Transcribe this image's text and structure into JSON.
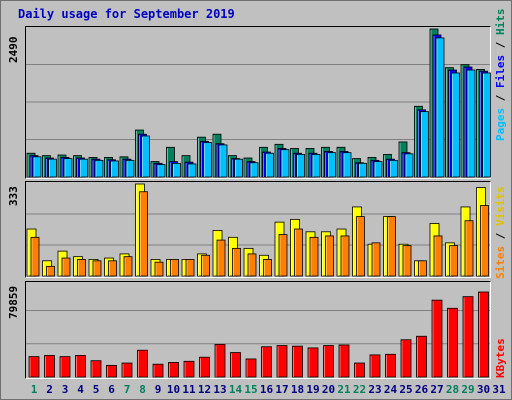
{
  "title": "Daily usage for September 2019",
  "colors": {
    "hits": "#00805c",
    "files": "#0000ff",
    "pages": "#00c0ff",
    "visits": "#ffff00",
    "sites": "#ff8000",
    "kbytes": "#ff0000",
    "weekend_label": "#00805c",
    "weekday_label": "#000080"
  },
  "chart_data": [
    {
      "type": "bar",
      "panel": "top",
      "ymax_label": "2490",
      "ylim": [
        0,
        2490
      ],
      "legend": [
        "Pages",
        "Files",
        "Hits"
      ],
      "categories": [
        "1",
        "2",
        "3",
        "4",
        "5",
        "6",
        "7",
        "8",
        "9",
        "10",
        "11",
        "12",
        "13",
        "14",
        "15",
        "16",
        "17",
        "18",
        "19",
        "20",
        "21",
        "22",
        "23",
        "24",
        "25",
        "26",
        "27",
        "28",
        "29",
        "30",
        "31"
      ],
      "series": [
        {
          "name": "Hits",
          "values": [
            400,
            360,
            370,
            360,
            330,
            330,
            340,
            790,
            260,
            500,
            360,
            670,
            720,
            360,
            320,
            500,
            550,
            480,
            480,
            500,
            500,
            310,
            330,
            380,
            590,
            1190,
            2490,
            1840,
            1890,
            1810,
            0
          ]
        },
        {
          "name": "Files",
          "values": [
            360,
            320,
            330,
            320,
            300,
            290,
            300,
            720,
            230,
            260,
            250,
            600,
            560,
            310,
            260,
            420,
            480,
            400,
            400,
            430,
            430,
            240,
            280,
            300,
            410,
            1130,
            2390,
            1800,
            1850,
            1780,
            0
          ]
        },
        {
          "name": "Pages",
          "values": [
            340,
            300,
            310,
            300,
            280,
            270,
            280,
            690,
            210,
            230,
            220,
            580,
            540,
            300,
            240,
            400,
            460,
            380,
            380,
            410,
            410,
            230,
            260,
            280,
            390,
            1100,
            2340,
            1750,
            1800,
            1750,
            0
          ]
        }
      ]
    },
    {
      "type": "bar",
      "panel": "middle",
      "ymax_label": "333",
      "ylim": [
        0,
        333
      ],
      "legend": [
        "Sites",
        "Visits"
      ],
      "categories": [
        "1",
        "2",
        "3",
        "4",
        "5",
        "6",
        "7",
        "8",
        "9",
        "10",
        "11",
        "12",
        "13",
        "14",
        "15",
        "16",
        "17",
        "18",
        "19",
        "20",
        "21",
        "22",
        "23",
        "24",
        "25",
        "26",
        "27",
        "28",
        "29",
        "30",
        "31"
      ],
      "series": [
        {
          "name": "Visits",
          "values": [
            170,
            55,
            90,
            70,
            60,
            65,
            80,
            333,
            60,
            60,
            60,
            80,
            165,
            140,
            100,
            75,
            195,
            205,
            160,
            160,
            170,
            250,
            115,
            215,
            115,
            55,
            190,
            120,
            250,
            320,
            0
          ]
        },
        {
          "name": "Sites",
          "values": [
            140,
            35,
            65,
            60,
            55,
            55,
            70,
            305,
            50,
            60,
            60,
            75,
            130,
            100,
            80,
            60,
            150,
            170,
            140,
            145,
            145,
            215,
            120,
            215,
            110,
            55,
            145,
            110,
            200,
            255,
            0
          ]
        }
      ]
    },
    {
      "type": "bar",
      "panel": "bottom",
      "ymax_label": "79859",
      "ylim": [
        0,
        79859
      ],
      "legend": [
        "KBytes"
      ],
      "categories": [
        "1",
        "2",
        "3",
        "4",
        "5",
        "6",
        "7",
        "8",
        "9",
        "10",
        "11",
        "12",
        "13",
        "14",
        "15",
        "16",
        "17",
        "18",
        "19",
        "20",
        "21",
        "22",
        "23",
        "24",
        "25",
        "26",
        "27",
        "28",
        "29",
        "30",
        "31"
      ],
      "series": [
        {
          "name": "KBytes",
          "values": [
            17500,
            18500,
            17500,
            18500,
            14000,
            10000,
            12000,
            23000,
            11000,
            12500,
            13500,
            17000,
            28000,
            21000,
            15500,
            26000,
            27000,
            26500,
            25000,
            27000,
            27500,
            12000,
            19000,
            19500,
            32000,
            35000,
            66000,
            59000,
            69000,
            73000,
            0
          ]
        }
      ]
    }
  ],
  "weekend_days": [
    "1",
    "7",
    "8",
    "14",
    "15",
    "21",
    "22",
    "28",
    "29"
  ]
}
